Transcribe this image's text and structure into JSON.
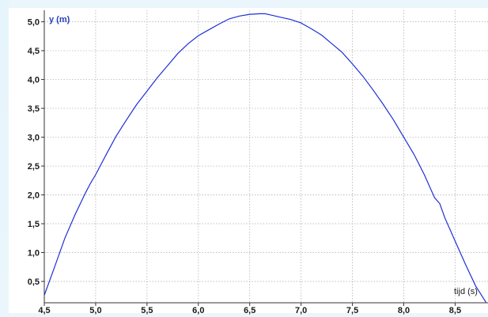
{
  "chart_data": {
    "type": "line",
    "title": "",
    "xlabel": "tijd (s)",
    "ylabel": "y (m)",
    "xlim": [
      4.5,
      8.82
    ],
    "ylim": [
      0.13,
      5.2
    ],
    "x_ticks": [
      "4,5",
      "5,0",
      "5,5",
      "6,0",
      "6,5",
      "7,0",
      "7,5",
      "8,0",
      "8,5"
    ],
    "y_ticks": [
      "0,5",
      "1,0",
      "1,5",
      "2,0",
      "2,5",
      "3,0",
      "3,5",
      "4,0",
      "4,5",
      "5,0"
    ],
    "grid": true,
    "line_color": "#1f2fd6",
    "series": [
      {
        "x": [
          4.5,
          4.6,
          4.7,
          4.8,
          4.9,
          4.95,
          5.0,
          5.1,
          5.2,
          5.3,
          5.4,
          5.5,
          5.6,
          5.7,
          5.8,
          5.9,
          6.0,
          6.1,
          6.2,
          6.3,
          6.4,
          6.5,
          6.6,
          6.65,
          6.7,
          6.8,
          6.9,
          7.0,
          7.1,
          7.2,
          7.3,
          7.4,
          7.5,
          7.6,
          7.7,
          7.8,
          7.9,
          8.0,
          8.1,
          8.2,
          8.3,
          8.35,
          8.4,
          8.5,
          8.6,
          8.7,
          8.8
        ],
        "y": [
          0.26,
          0.75,
          1.25,
          1.66,
          2.03,
          2.2,
          2.35,
          2.69,
          3.02,
          3.3,
          3.57,
          3.8,
          4.03,
          4.24,
          4.45,
          4.62,
          4.76,
          4.86,
          4.96,
          5.05,
          5.1,
          5.13,
          5.14,
          5.14,
          5.12,
          5.08,
          5.04,
          4.98,
          4.88,
          4.77,
          4.62,
          4.47,
          4.27,
          4.06,
          3.82,
          3.57,
          3.3,
          3.0,
          2.7,
          2.35,
          1.95,
          1.85,
          1.6,
          1.2,
          0.8,
          0.42,
          0.14
        ]
      }
    ]
  }
}
